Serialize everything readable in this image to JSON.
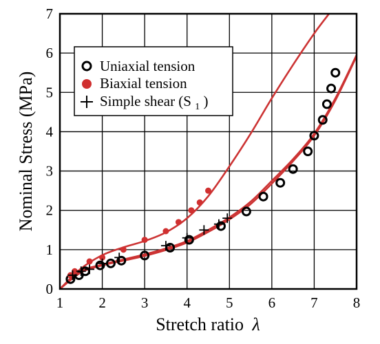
{
  "chart_data": {
    "type": "scatter",
    "title": "",
    "xlabel": "Stretch ratio",
    "xlabel_symbol": "λ",
    "ylabel": "Nominal Stress (MPa)",
    "xlim": [
      1,
      8
    ],
    "ylim": [
      0,
      7
    ],
    "xticks": [
      "1",
      "2",
      "3",
      "4",
      "5",
      "6",
      "7",
      "8"
    ],
    "yticks": [
      "0",
      "1",
      "2",
      "3",
      "4",
      "5",
      "6",
      "7"
    ],
    "grid": true,
    "legend": "top-left",
    "colors": {
      "experiment_red": "#d03030",
      "model_red": "#cc3333",
      "black": "#000000"
    },
    "series": [
      {
        "name": "Uniaxial tension",
        "marker": "open-circle",
        "color": "#000000",
        "x": [
          1.25,
          1.45,
          1.6,
          1.95,
          2.2,
          2.45,
          3.0,
          3.6,
          4.05,
          4.8,
          5.4,
          5.8,
          6.2,
          6.5,
          6.85,
          7.0,
          7.2,
          7.3,
          7.4,
          7.5
        ],
        "y": [
          0.25,
          0.35,
          0.45,
          0.6,
          0.65,
          0.72,
          0.85,
          1.05,
          1.25,
          1.6,
          1.97,
          2.35,
          2.7,
          3.05,
          3.5,
          3.9,
          4.3,
          4.7,
          5.1,
          5.5
        ]
      },
      {
        "name": "Biaxial tension",
        "marker": "filled-circle",
        "color": "#d03030",
        "x": [
          1.25,
          1.35,
          1.7,
          2.0,
          2.5,
          3.0,
          3.5,
          3.8,
          4.1,
          4.3,
          4.5
        ],
        "y": [
          0.35,
          0.45,
          0.7,
          0.8,
          1.0,
          1.25,
          1.47,
          1.7,
          2.0,
          2.2,
          2.5
        ]
      },
      {
        "name": "Simple shear (S1)",
        "name_main": "Simple shear (S",
        "name_sub": "1",
        "name_end": ")",
        "marker": "plus",
        "color": "#000000",
        "x": [
          1.3,
          1.5,
          1.7,
          2.0,
          2.4,
          3.5,
          4.0,
          4.4,
          4.75,
          4.95
        ],
        "y": [
          0.35,
          0.45,
          0.5,
          0.65,
          0.8,
          1.1,
          1.3,
          1.5,
          1.65,
          1.8
        ]
      }
    ],
    "model_curves": [
      {
        "id": "biaxial-model",
        "color": "#cc3333",
        "x": [
          1.0,
          1.5,
          2.0,
          2.5,
          3.0,
          3.5,
          4.0,
          4.5,
          5.0,
          5.5,
          6.0,
          6.5,
          7.0,
          7.35
        ],
        "y": [
          0.0,
          0.52,
          0.86,
          1.06,
          1.22,
          1.44,
          1.8,
          2.36,
          3.12,
          3.95,
          4.85,
          5.7,
          6.5,
          7.0
        ]
      },
      {
        "id": "uniaxial-model",
        "color": "#cc3333",
        "x": [
          1.0,
          1.5,
          2.0,
          2.5,
          3.0,
          3.5,
          4.0,
          4.5,
          5.0,
          5.5,
          6.0,
          6.5,
          7.0,
          7.5,
          8.0
        ],
        "y": [
          0.0,
          0.45,
          0.62,
          0.75,
          0.88,
          1.03,
          1.22,
          1.5,
          1.82,
          2.22,
          2.75,
          3.3,
          3.95,
          4.85,
          5.95
        ]
      },
      {
        "id": "shear-model",
        "color": "#cc3333",
        "x": [
          1.0,
          1.5,
          2.0,
          2.5,
          3.0,
          3.5,
          4.0,
          4.5,
          5.0,
          5.5,
          6.0,
          6.5,
          7.0,
          7.5,
          8.0
        ],
        "y": [
          0.0,
          0.42,
          0.6,
          0.72,
          0.84,
          0.99,
          1.18,
          1.45,
          1.77,
          2.16,
          2.68,
          3.25,
          3.9,
          4.8,
          5.92
        ]
      }
    ]
  }
}
